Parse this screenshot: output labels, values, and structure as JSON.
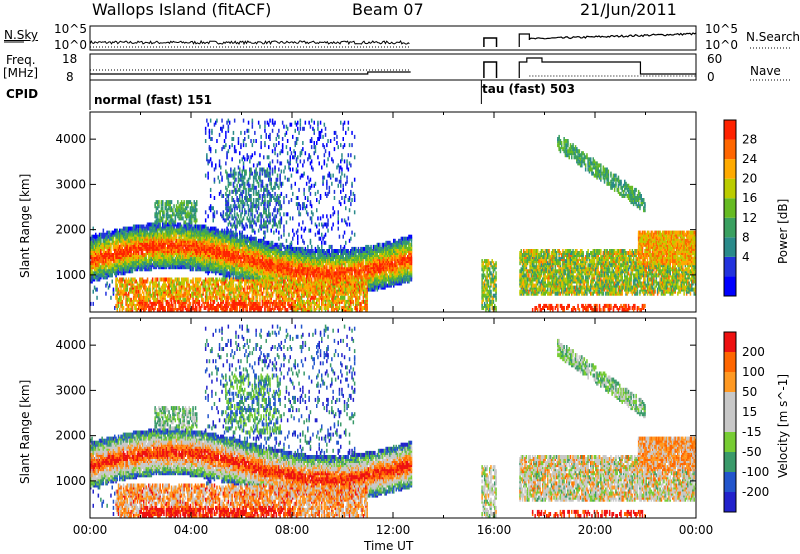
{
  "header": {
    "site": "Wallops Island (fitACF)",
    "beam": "Beam 07",
    "date": "21/Jun/2011"
  },
  "param_panels": {
    "nsky_label": "N.Sky",
    "nsky_ticks": [
      "10^5",
      "10^0"
    ],
    "nsearch_label": "N.Search",
    "freq_label_1": "Freq.",
    "freq_label_2": "[MHz]",
    "freq_ticks": [
      "18",
      "8"
    ],
    "nave_label": "Nave",
    "nave_ticks": [
      "60",
      "0"
    ],
    "cpid_label": "CPID",
    "cpid_1": "normal (fast) 151",
    "cpid_2": "tau (fast) 503"
  },
  "colors": {
    "power": [
      "#0000ff",
      "#2233dd",
      "#2a8a8a",
      "#3aa060",
      "#66bb22",
      "#bbcc00",
      "#ffaa00",
      "#ff6600",
      "#ff2200"
    ],
    "velocity": [
      "#2222cc",
      "#2255cc",
      "#3a9a6a",
      "#77cc33",
      "#c8c8c8",
      "#c8c8c8",
      "#ff9922",
      "#ff6600",
      "#ee1111"
    ]
  },
  "chart_data": [
    {
      "type": "heatmap",
      "name": "power",
      "ylabel": "Slant Range [km]",
      "yticks": [
        "4000",
        "3000",
        "2000",
        "1000"
      ],
      "ylim": [
        180,
        4600
      ],
      "xlim": [
        0,
        24
      ],
      "colorbar_label": "Power [dB]",
      "colorbar_ticks": [
        "28",
        "24",
        "20",
        "16",
        "12",
        "8",
        "4"
      ],
      "colorbar_range": [
        0,
        32
      ]
    },
    {
      "type": "heatmap",
      "name": "velocity",
      "ylabel": "Slant Range [km]",
      "yticks": [
        "4000",
        "3000",
        "2000",
        "1000"
      ],
      "ylim": [
        180,
        4600
      ],
      "xlim": [
        0,
        24
      ],
      "colorbar_label": "Velocity [m s^-1]",
      "colorbar_ticks": [
        "200",
        "100",
        "50",
        "15",
        "-15",
        "-50",
        "-100",
        "-200"
      ],
      "xlabel": "Time UT",
      "xticks": [
        "00:00",
        "04:00",
        "08:00",
        "12:00",
        "16:00",
        "20:00",
        "00:00"
      ]
    }
  ]
}
